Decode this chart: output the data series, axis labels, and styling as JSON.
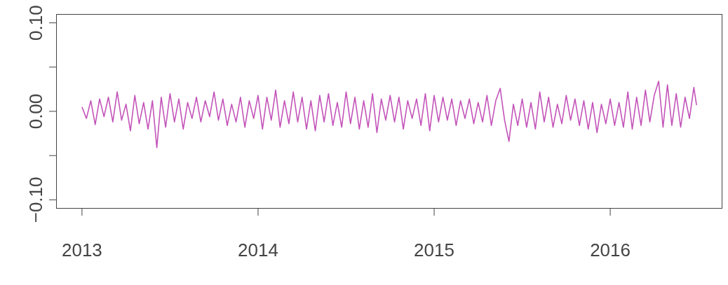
{
  "chart_data": {
    "type": "line",
    "x": [
      2013,
      2013.025,
      2013.05,
      2013.075,
      2013.1,
      2013.125,
      2013.15,
      2013.175,
      2013.2,
      2013.225,
      2013.25,
      2013.275,
      2013.3,
      2013.325,
      2013.35,
      2013.375,
      2013.4,
      2013.425,
      2013.45,
      2013.475,
      2013.5,
      2013.525,
      2013.55,
      2013.575,
      2013.6,
      2013.625,
      2013.65,
      2013.675,
      2013.7,
      2013.725,
      2013.75,
      2013.775,
      2013.8,
      2013.825,
      2013.85,
      2013.875,
      2013.9,
      2013.925,
      2013.95,
      2013.975,
      2014,
      2014.025,
      2014.05,
      2014.075,
      2014.1,
      2014.125,
      2014.15,
      2014.175,
      2014.2,
      2014.225,
      2014.25,
      2014.275,
      2014.3,
      2014.325,
      2014.35,
      2014.375,
      2014.4,
      2014.425,
      2014.45,
      2014.475,
      2014.5,
      2014.525,
      2014.55,
      2014.575,
      2014.6,
      2014.625,
      2014.65,
      2014.675,
      2014.7,
      2014.725,
      2014.75,
      2014.775,
      2014.8,
      2014.825,
      2014.85,
      2014.875,
      2014.9,
      2014.925,
      2014.95,
      2014.975,
      2015,
      2015.025,
      2015.05,
      2015.075,
      2015.1,
      2015.125,
      2015.15,
      2015.175,
      2015.2,
      2015.225,
      2015.25,
      2015.275,
      2015.3,
      2015.325,
      2015.35,
      2015.375,
      2015.4,
      2015.425,
      2015.45,
      2015.475,
      2015.5,
      2015.525,
      2015.55,
      2015.575,
      2015.6,
      2015.625,
      2015.65,
      2015.675,
      2015.7,
      2015.725,
      2015.75,
      2015.775,
      2015.8,
      2015.825,
      2015.85,
      2015.875,
      2015.9,
      2015.925,
      2015.95,
      2015.975,
      2016,
      2016.025,
      2016.05,
      2016.075,
      2016.1,
      2016.125,
      2016.15,
      2016.175,
      2016.2,
      2016.225,
      2016.25,
      2016.275,
      2016.3,
      2016.325,
      2016.35,
      2016.375,
      2016.4,
      2016.425,
      2016.45,
      2016.475,
      2016.49
    ],
    "series": [
      {
        "color": "#c354b9",
        "values": [
          0.005,
          -0.008,
          0.012,
          -0.015,
          0.014,
          -0.006,
          0.016,
          -0.012,
          0.022,
          -0.01,
          0.008,
          -0.022,
          0.018,
          -0.014,
          0.01,
          -0.02,
          0.012,
          -0.041,
          0.016,
          -0.018,
          0.02,
          -0.012,
          0.014,
          -0.02,
          0.01,
          -0.008,
          0.016,
          -0.012,
          0.012,
          -0.006,
          0.022,
          -0.01,
          0.014,
          -0.016,
          0.008,
          -0.012,
          0.016,
          -0.018,
          0.012,
          -0.008,
          0.018,
          -0.02,
          0.016,
          -0.01,
          0.024,
          -0.018,
          0.012,
          -0.014,
          0.022,
          -0.012,
          0.016,
          -0.02,
          0.012,
          -0.022,
          0.018,
          -0.012,
          0.02,
          -0.016,
          0.01,
          -0.018,
          0.022,
          -0.014,
          0.016,
          -0.02,
          0.012,
          -0.018,
          0.02,
          -0.024,
          0.014,
          -0.01,
          0.018,
          -0.012,
          0.016,
          -0.02,
          0.012,
          -0.008,
          0.014,
          -0.016,
          0.02,
          -0.022,
          0.018,
          -0.012,
          0.016,
          -0.01,
          0.014,
          -0.016,
          0.012,
          -0.008,
          0.014,
          -0.014,
          0.01,
          -0.012,
          0.018,
          -0.016,
          0.012,
          0.026,
          -0.01,
          -0.034,
          0.008,
          -0.016,
          0.014,
          -0.018,
          0.01,
          -0.02,
          0.022,
          -0.012,
          0.016,
          -0.018,
          0.008,
          -0.014,
          0.018,
          -0.01,
          0.014,
          -0.016,
          0.012,
          -0.02,
          0.01,
          -0.024,
          0.008,
          -0.014,
          0.014,
          -0.016,
          0.01,
          -0.018,
          0.022,
          -0.02,
          0.016,
          -0.016,
          0.024,
          -0.012,
          0.018,
          0.034,
          -0.018,
          0.03,
          -0.016,
          0.02,
          -0.018,
          0.016,
          -0.008,
          0.027,
          0.007
        ]
      }
    ],
    "xlim": [
      2012.853,
      2016.637
    ],
    "xticks": [
      2013,
      2014,
      2015,
      2016
    ],
    "ylim": [
      -0.11,
      0.11
    ],
    "yticks": [
      {
        "value": -0.1,
        "label": "−0.10"
      },
      {
        "value": -0.05,
        "label": null
      },
      {
        "value": 0,
        "label": "0.00"
      },
      {
        "value": 0.05,
        "label": null
      },
      {
        "value": 0.1,
        "label": "0.10"
      }
    ],
    "line_style": "solid"
  }
}
